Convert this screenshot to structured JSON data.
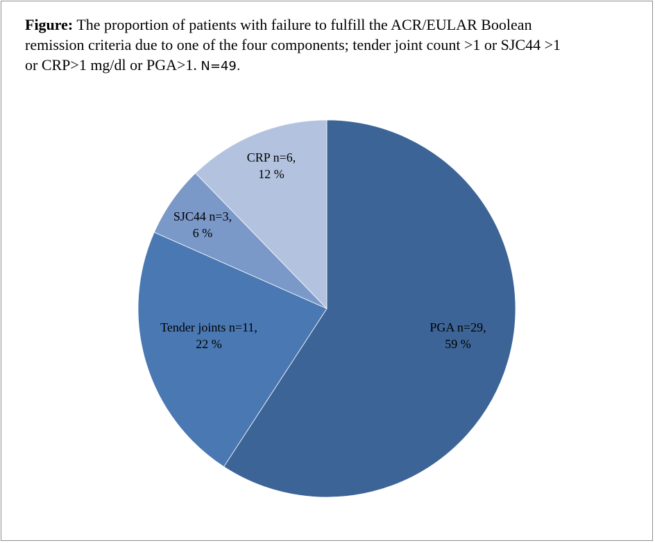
{
  "caption": {
    "label": "Figure:",
    "text": " The proportion of patients with failure to fulfill  the ACR/EULAR Boolean remission criteria due to one of the four components; tender joint count >1 or SJC44 >1 or CRP>1 mg/dl or PGA>1. ",
    "n_text": "N=49."
  },
  "chart_data": {
    "type": "pie",
    "title": "",
    "start_angle_deg": 90,
    "direction": "clockwise",
    "slices": [
      {
        "name": "PGA",
        "count": 29,
        "percent": 59,
        "label_line1": "PGA n=29,",
        "label_line2": "59 %",
        "color": "#3c6496"
      },
      {
        "name": "Tender joints",
        "count": 11,
        "percent": 22,
        "label_line1": "Tender joints n=11,",
        "label_line2": "22 %",
        "color": "#4a78b2"
      },
      {
        "name": "SJC44",
        "count": 3,
        "percent": 6,
        "label_line1": "SJC44 n=3,",
        "label_line2": "6 %",
        "color": "#7a98c8"
      },
      {
        "name": "CRP",
        "count": 6,
        "percent": 12,
        "label_line1": "CRP n=6,",
        "label_line2": "12 %",
        "color": "#b3c3df"
      }
    ]
  }
}
